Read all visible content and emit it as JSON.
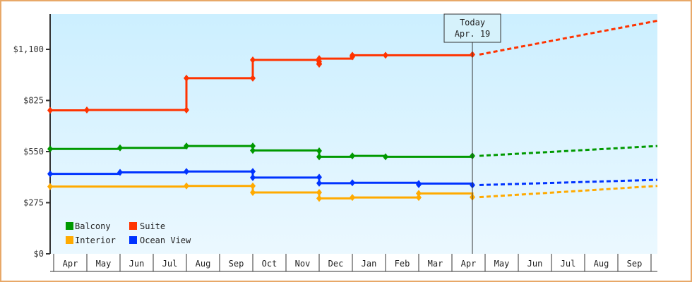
{
  "chart_data": {
    "type": "line",
    "title": "",
    "xlabel": "",
    "ylabel": "",
    "ylim": [
      0,
      1287
    ],
    "y_ticks": [
      "$0",
      "$275",
      "$550",
      "$825",
      "$1,100"
    ],
    "y_tick_values": [
      0,
      275,
      550,
      825,
      1100
    ],
    "x_ticks": [
      "Apr",
      "May",
      "Jun",
      "Jul",
      "Aug",
      "Sep",
      "Oct",
      "Nov",
      "Dec",
      "Jan",
      "Feb",
      "Mar",
      "Apr",
      "May",
      "Jun",
      "Jul",
      "Aug",
      "Sep"
    ],
    "grid": false,
    "legend_position": "lower-left",
    "annotation": {
      "line1": "Today",
      "line2": "Apr. 19"
    },
    "series": [
      {
        "name": "Suite",
        "color": "#ff3300",
        "points": [
          [
            "Apr",
            772
          ],
          [
            "May",
            774
          ],
          [
            "Aug",
            774
          ],
          [
            "Aug",
            945
          ],
          [
            "Oct",
            945
          ],
          [
            "Oct",
            1043
          ],
          [
            "Dec",
            1035
          ],
          [
            "Dec",
            1020
          ],
          [
            "Dec",
            1025
          ],
          [
            "Dec",
            1050
          ],
          [
            "Jan",
            1060
          ],
          [
            "Jan",
            1068
          ],
          [
            "Feb",
            1068
          ],
          [
            "Apr",
            1072
          ]
        ],
        "projection_end": 1254
      },
      {
        "name": "Balcony",
        "color": "#009900",
        "points": [
          [
            "Apr",
            564
          ],
          [
            "Jun",
            570
          ],
          [
            "Aug",
            580
          ],
          [
            "Oct",
            580
          ],
          [
            "Oct",
            556
          ],
          [
            "Dec",
            554
          ],
          [
            "Dec",
            522
          ],
          [
            "Jan",
            527
          ],
          [
            "Feb",
            522
          ],
          [
            "Apr",
            527
          ]
        ],
        "projection_end": 580
      },
      {
        "name": "Ocean View",
        "color": "#0033ff",
        "points": [
          [
            "Apr",
            430
          ],
          [
            "Jun",
            438
          ],
          [
            "Aug",
            443
          ],
          [
            "Oct",
            443
          ],
          [
            "Oct",
            410
          ],
          [
            "Dec",
            412
          ],
          [
            "Dec",
            380
          ],
          [
            "Jan",
            382
          ],
          [
            "Mar",
            372
          ],
          [
            "Mar",
            378
          ],
          [
            "Apr",
            370
          ]
        ],
        "projection_end": 398
      },
      {
        "name": "Interior",
        "color": "#ffaa00",
        "points": [
          [
            "Apr",
            362
          ],
          [
            "Aug",
            365
          ],
          [
            "Oct",
            365
          ],
          [
            "Oct",
            330
          ],
          [
            "Dec",
            330
          ],
          [
            "Dec",
            298
          ],
          [
            "Jan",
            303
          ],
          [
            "Mar",
            303
          ],
          [
            "Mar",
            325
          ],
          [
            "Apr",
            305
          ]
        ],
        "projection_end": 365
      }
    ]
  },
  "legend": {
    "items": [
      {
        "label": "Balcony",
        "color": "#009900"
      },
      {
        "label": "Suite",
        "color": "#ff3300"
      },
      {
        "label": "Interior",
        "color": "#ffaa00"
      },
      {
        "label": "Ocean View",
        "color": "#0033ff"
      }
    ]
  },
  "axis": {
    "y": [
      "$0",
      "$275",
      "$550",
      "$825",
      "$1,100"
    ],
    "x": [
      "Apr",
      "May",
      "Jun",
      "Jul",
      "Aug",
      "Sep",
      "Oct",
      "Nov",
      "Dec",
      "Jan",
      "Feb",
      "Mar",
      "Apr",
      "May",
      "Jun",
      "Jul",
      "Aug",
      "Sep"
    ]
  },
  "today": {
    "line1": "Today",
    "line2": "Apr. 19"
  }
}
